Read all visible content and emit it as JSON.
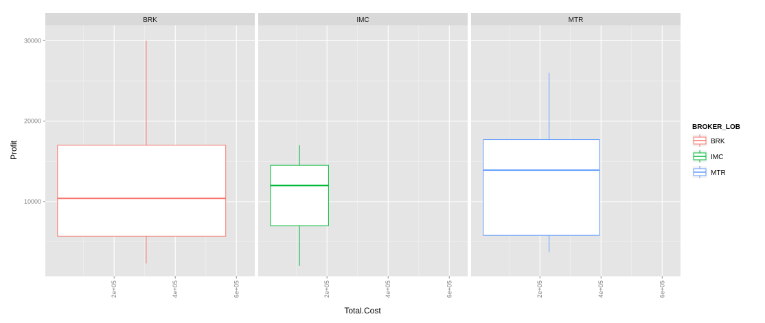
{
  "chart_data": {
    "type": "boxplot",
    "xlabel": "Total.Cost",
    "ylabel": "Profit",
    "x_ticks": [
      "2e+05",
      "4e+05",
      "6e+05"
    ],
    "x_tick_values": [
      200000,
      400000,
      600000
    ],
    "xlim": [
      -25000,
      660000
    ],
    "y_ticks": [
      "10000",
      "20000",
      "30000"
    ],
    "y_tick_values": [
      10000,
      20000,
      30000
    ],
    "ylim": [
      700,
      31900
    ],
    "grid": true,
    "legend": {
      "title": "BROKER_LOB",
      "placement": "right",
      "entries": [
        "BRK",
        "IMC",
        "MTR"
      ]
    },
    "panels": [
      {
        "strip": "BRK",
        "color": "#F8766D",
        "box": {
          "x_from": 15000,
          "x_to": 565000,
          "x_center": 305000,
          "whisker_low": 2300,
          "q1": 5700,
          "median": 10400,
          "q3": 17000,
          "whisker_high": 30000
        }
      },
      {
        "strip": "IMC",
        "color": "#00BA38",
        "box": {
          "x_from": 15000,
          "x_to": 205000,
          "x_center": 110000,
          "whisker_low": 2000,
          "q1": 7000,
          "median": 12000,
          "q3": 14500,
          "whisker_high": 17000
        }
      },
      {
        "strip": "MTR",
        "color": "#619CFF",
        "box": {
          "x_from": 15000,
          "x_to": 395000,
          "x_center": 230000,
          "whisker_low": 3700,
          "q1": 5800,
          "median": 13900,
          "q3": 17700,
          "whisker_high": 26000
        }
      }
    ]
  }
}
